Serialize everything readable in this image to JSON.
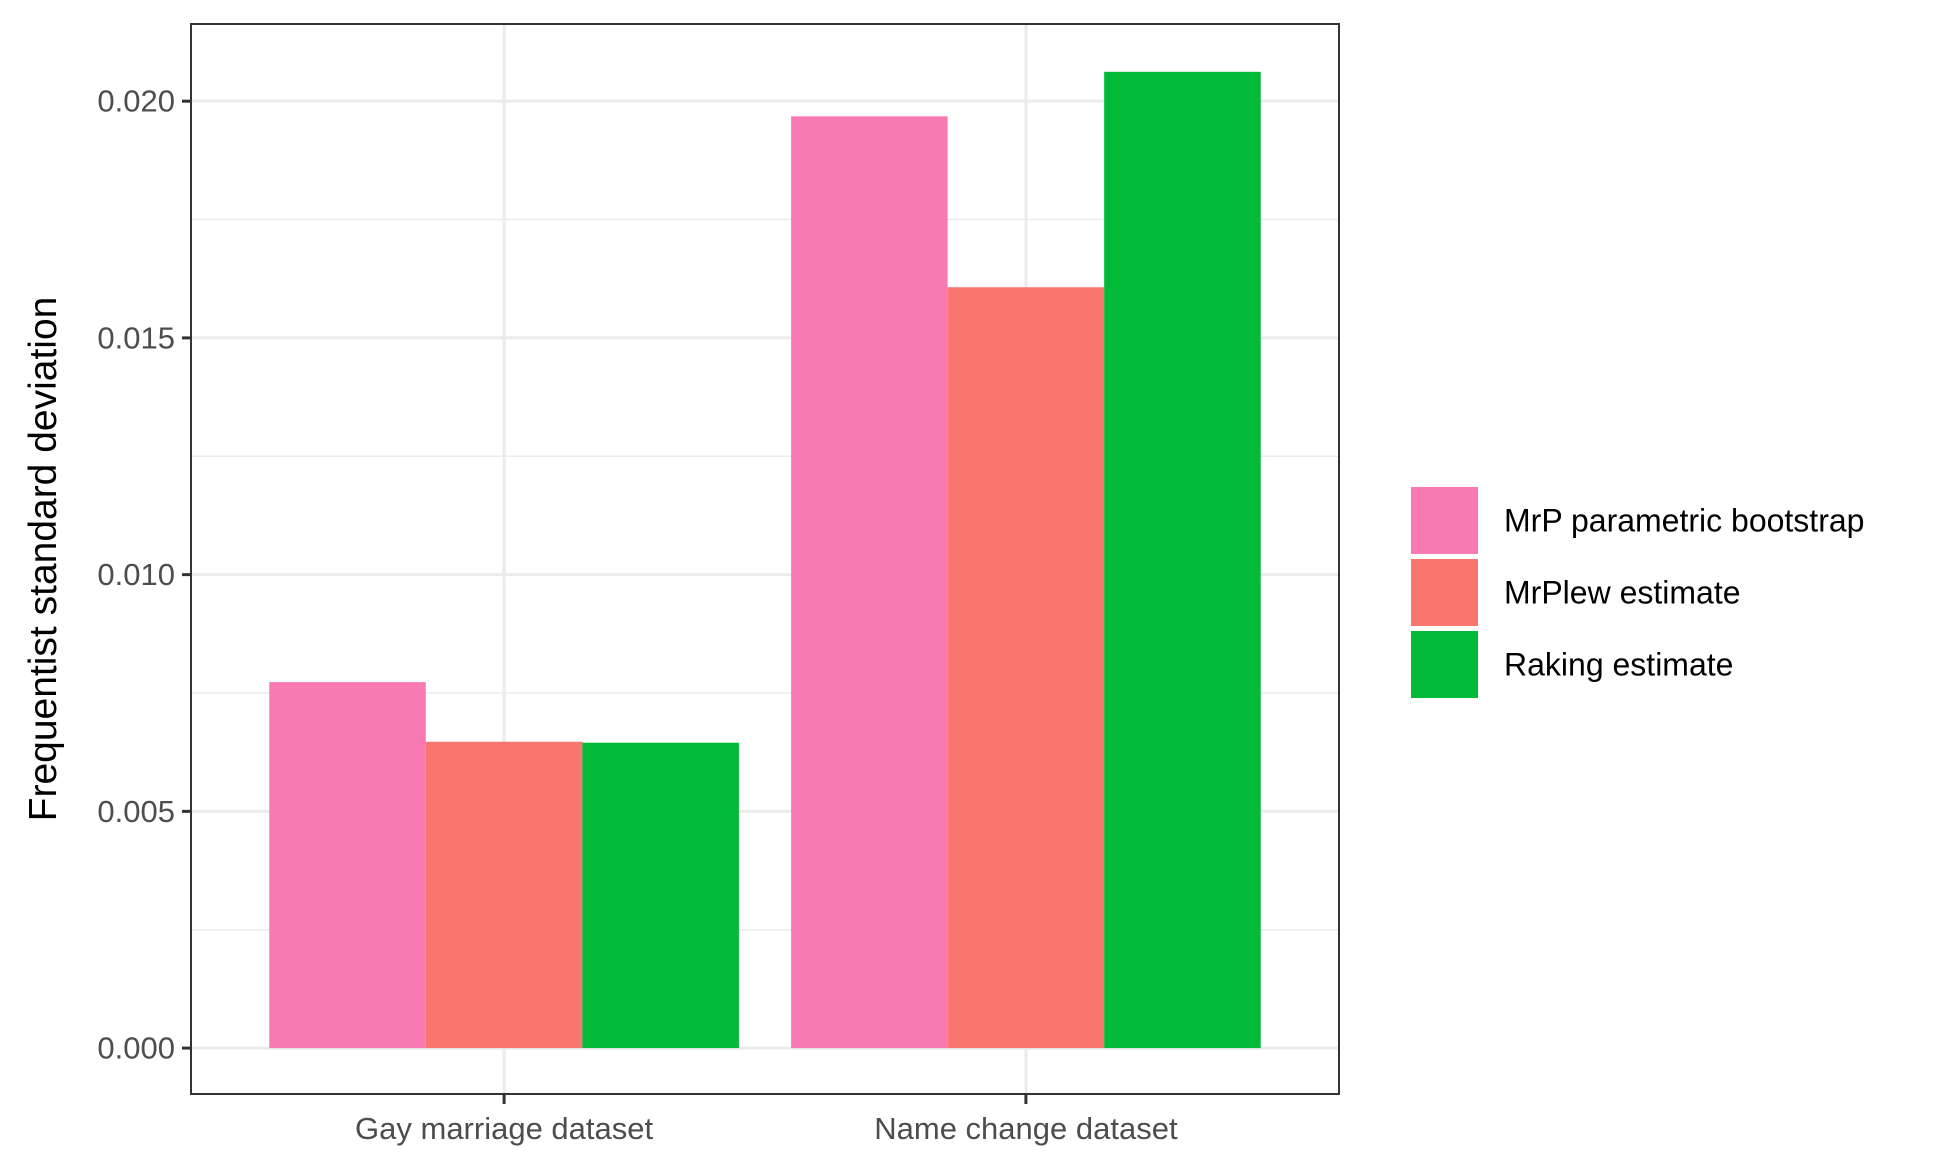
{
  "chart_data": {
    "type": "bar",
    "title": "",
    "xlabel": "",
    "ylabel": "Frequentist standard deviation",
    "categories": [
      "Gay marriage dataset",
      "Name change dataset"
    ],
    "series": [
      {
        "name": "MrP parametric bootstrap",
        "color": "#F77AB2",
        "values": [
          0.00773,
          0.01968
        ]
      },
      {
        "name": "MrPlew estimate",
        "color": "#F8766D",
        "values": [
          0.00647,
          0.01607
        ]
      },
      {
        "name": "Raking estimate",
        "color": "#00BA38",
        "values": [
          0.00645,
          0.02062
        ]
      }
    ],
    "ylim": [
      -0.00097,
      0.02163
    ],
    "yticks": [
      0.0,
      0.005,
      0.01,
      0.015,
      0.02
    ],
    "ytick_labels": [
      "0.000",
      "0.005",
      "0.010",
      "0.015",
      "0.020"
    ],
    "grid": true,
    "legend_position": "right"
  }
}
